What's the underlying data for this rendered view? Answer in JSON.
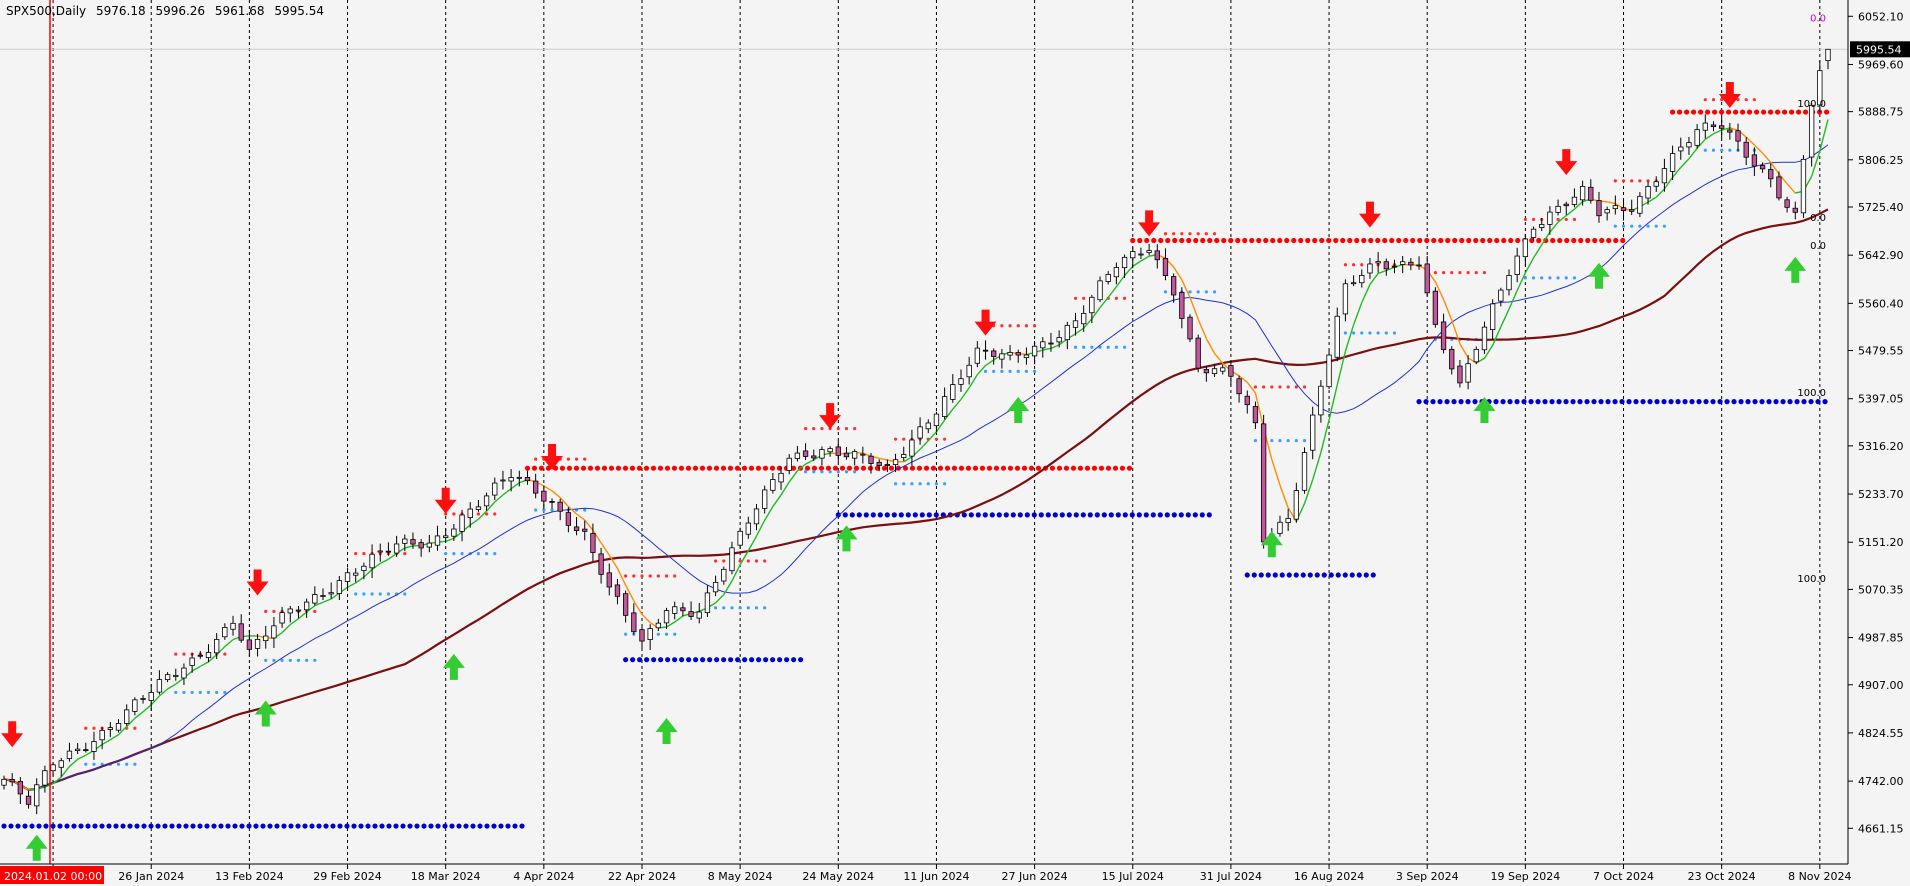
{
  "header": {
    "symbol": "SPX500,Daily",
    "open": "5976.18",
    "high": "5996.26",
    "low": "5961.68",
    "close": "5995.54"
  },
  "colors": {
    "background": "#f4f4f4",
    "bull_candle": "#ffffff",
    "bear_candle": "#c2569a",
    "ma_fast_up": "#22bb22",
    "ma_fast_down": "#ff8c00",
    "ma_medium": "#2233cc",
    "ma_slow": "#7a0f0f",
    "resistance_dots": "#ff0000",
    "support_dots": "#0000cc",
    "cursor_line": "#ff0000",
    "price_label_bg": "#000000"
  },
  "chart_data": {
    "type": "candlestick",
    "symbol": "SPX500",
    "timeframe": "Daily",
    "y_range": [
      4600,
      6080
    ],
    "y_ticks": [
      "6052.10",
      "5969.60",
      "5888.75",
      "5806.25",
      "5725.40",
      "5642.90",
      "5560.40",
      "5479.55",
      "5397.05",
      "5316.20",
      "5233.70",
      "5151.20",
      "5070.35",
      "4987.85",
      "4907.00",
      "4824.55",
      "4742.00",
      "4661.15"
    ],
    "x_tick_labels": [
      "10 Jan 2024",
      "26 Jan 2024",
      "13 Feb 2024",
      "29 Feb 2024",
      "18 Mar 2024",
      "4 Apr 2024",
      "22 Apr 2024",
      "8 May 2024",
      "24 May 2024",
      "11 Jun 2024",
      "27 Jun 2024",
      "15 Jul 2024",
      "31 Jul 2024",
      "16 Aug 2024",
      "3 Sep 2024",
      "19 Sep 2024",
      "7 Oct 2024",
      "23 Oct 2024",
      "8 Nov 2024"
    ],
    "cursor_label": "2024.01.02 00:00",
    "current_price_label": "5995.54",
    "path_anchors": [
      [
        "2024-01-02",
        4745
      ],
      [
        "2024-01-05",
        4700
      ],
      [
        "2024-01-10",
        4770
      ],
      [
        "2024-01-19",
        4840
      ],
      [
        "2024-01-26",
        4890
      ],
      [
        "2024-02-02",
        4950
      ],
      [
        "2024-02-09",
        5020
      ],
      [
        "2024-02-13",
        4960
      ],
      [
        "2024-02-20",
        5030
      ],
      [
        "2024-02-29",
        5100
      ],
      [
        "2024-03-08",
        5140
      ],
      [
        "2024-03-14",
        5150
      ],
      [
        "2024-03-20",
        5200
      ],
      [
        "2024-03-28",
        5260
      ],
      [
        "2024-04-04",
        5220
      ],
      [
        "2024-04-10",
        5170
      ],
      [
        "2024-04-15",
        5070
      ],
      [
        "2024-04-19",
        4970
      ],
      [
        "2024-04-24",
        5040
      ],
      [
        "2024-04-30",
        5040
      ],
      [
        "2024-05-08",
        5180
      ],
      [
        "2024-05-15",
        5300
      ],
      [
        "2024-05-21",
        5315
      ],
      [
        "2024-05-28",
        5290
      ],
      [
        "2024-05-31",
        5270
      ],
      [
        "2024-06-06",
        5350
      ],
      [
        "2024-06-12",
        5420
      ],
      [
        "2024-06-17",
        5470
      ],
      [
        "2024-06-21",
        5465
      ],
      [
        "2024-07-03",
        5530
      ],
      [
        "2024-07-10",
        5620
      ],
      [
        "2024-07-16",
        5660
      ],
      [
        "2024-07-19",
        5590
      ],
      [
        "2024-07-24",
        5450
      ],
      [
        "2024-07-30",
        5430
      ],
      [
        "2024-08-02",
        5350
      ],
      [
        "2024-08-05",
        5160
      ],
      [
        "2024-08-08",
        5200
      ],
      [
        "2024-08-14",
        5420
      ],
      [
        "2024-08-19",
        5580
      ],
      [
        "2024-08-23",
        5630
      ],
      [
        "2024-08-27",
        5630
      ],
      [
        "2024-08-30",
        5640
      ],
      [
        "2024-09-03",
        5520
      ],
      [
        "2024-09-06",
        5410
      ],
      [
        "2024-09-10",
        5480
      ],
      [
        "2024-09-16",
        5620
      ],
      [
        "2024-09-19",
        5700
      ],
      [
        "2024-09-27",
        5745
      ],
      [
        "2024-10-01",
        5710
      ],
      [
        "2024-10-07",
        5730
      ],
      [
        "2024-10-11",
        5800
      ],
      [
        "2024-10-17",
        5850
      ],
      [
        "2024-10-22",
        5860
      ],
      [
        "2024-10-25",
        5820
      ],
      [
        "2024-10-30",
        5780
      ],
      [
        "2024-11-01",
        5730
      ],
      [
        "2024-11-04",
        5710
      ],
      [
        "2024-11-06",
        5900
      ],
      [
        "2024-11-08",
        5995.54
      ]
    ],
    "moving_averages": [
      {
        "key": "ma_slow",
        "type": "close_ma",
        "period": 50,
        "color_key": "ma_slow",
        "width": 2.2
      },
      {
        "key": "ma_medium",
        "type": "close_ma",
        "period": 20,
        "color_key": "ma_medium",
        "width": 1
      },
      {
        "key": "ma_fast",
        "type": "close_ma",
        "period": 5,
        "color_key": "ma_fast_up",
        "alt_color_key": "ma_fast_down",
        "width": 1.4
      }
    ],
    "level_lines": [
      {
        "kind": "support",
        "start": "2024-01-02",
        "end": "2024-04-01",
        "price": 4665
      },
      {
        "kind": "support",
        "start": "2024-04-17",
        "end": "2024-05-17",
        "price": 4950
      },
      {
        "kind": "support",
        "start": "2024-05-23",
        "end": "2024-07-26",
        "price": 5198
      },
      {
        "kind": "support",
        "start": "2024-08-01",
        "end": "2024-08-23",
        "price": 5095
      },
      {
        "kind": "support",
        "start": "2024-08-30",
        "end": "2024-11-08",
        "price": 5392
      },
      {
        "kind": "resistance",
        "start": "2024-04-01",
        "end": "2024-07-12",
        "price": 5278
      },
      {
        "kind": "resistance",
        "start": "2024-07-12",
        "end": "2024-10-04",
        "price": 5668
      },
      {
        "kind": "resistance",
        "start": "2024-10-14",
        "end": "2024-11-08",
        "price": 5888
      }
    ],
    "down_arrows": [
      [
        "2024-01-03",
        4800
      ],
      [
        "2024-02-14",
        5060
      ],
      [
        "2024-03-18",
        5200
      ],
      [
        "2024-04-04",
        5275
      ],
      [
        "2024-05-22",
        5345
      ],
      [
        "2024-06-18",
        5505
      ],
      [
        "2024-07-16",
        5675
      ],
      [
        "2024-08-22",
        5690
      ],
      [
        "2024-09-25",
        5780
      ],
      [
        "2024-10-23",
        5895
      ]
    ],
    "up_arrows": [
      [
        "2024-01-08",
        4650
      ],
      [
        "2024-02-15",
        4880
      ],
      [
        "2024-03-19",
        4960
      ],
      [
        "2024-04-24",
        4850
      ],
      [
        "2024-05-24",
        5180
      ],
      [
        "2024-06-24",
        5400
      ],
      [
        "2024-08-06",
        5170
      ],
      [
        "2024-09-11",
        5400
      ],
      [
        "2024-10-01",
        5630
      ],
      [
        "2024-11-04",
        5640
      ]
    ],
    "level_markers": [
      {
        "text": "0.0",
        "price": 6040,
        "color": "#d000d0"
      },
      {
        "text": "100.0",
        "price": 5893
      },
      {
        "text": "0.0",
        "price": 5698
      },
      {
        "text": "0.0",
        "price": 5650
      },
      {
        "text": "100.0",
        "price": 5398
      },
      {
        "text": "100.0",
        "price": 5080
      }
    ]
  }
}
